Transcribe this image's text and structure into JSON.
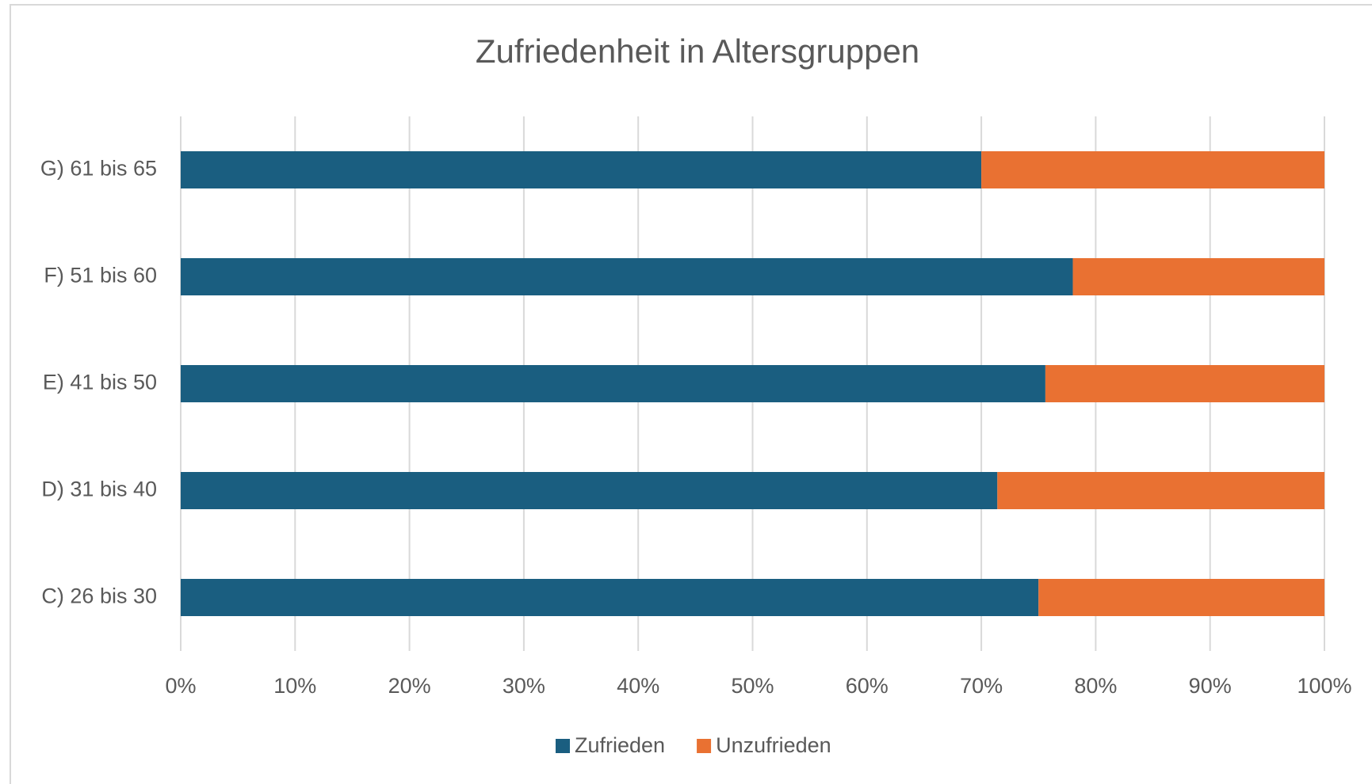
{
  "chart_data": {
    "type": "stacked-bar-horizontal",
    "title": "Zufriedenheit in Altersgruppen",
    "categories": [
      "C) 26 bis 30",
      "D) 31 bis 40",
      "E) 41 bis 50",
      "F) 51 bis 60",
      "G) 61 bis 65"
    ],
    "series": [
      {
        "name": "Zufrieden",
        "color": "#1a5e80",
        "values": [
          75,
          71.4,
          75.6,
          78,
          70
        ]
      },
      {
        "name": "Unzufrieden",
        "color": "#e97132",
        "values": [
          25,
          28.6,
          24.4,
          22,
          30
        ]
      }
    ],
    "xlim": [
      0,
      100
    ],
    "xticks": [
      {
        "value": 0,
        "label": "0%"
      },
      {
        "value": 10,
        "label": "10%"
      },
      {
        "value": 20,
        "label": "20%"
      },
      {
        "value": 30,
        "label": "30%"
      },
      {
        "value": 40,
        "label": "40%"
      },
      {
        "value": 50,
        "label": "50%"
      },
      {
        "value": 60,
        "label": "60%"
      },
      {
        "value": 70,
        "label": "70%"
      },
      {
        "value": 80,
        "label": "80%"
      },
      {
        "value": 90,
        "label": "90%"
      },
      {
        "value": 100,
        "label": "100%"
      }
    ],
    "grid": true,
    "legend": "bottom"
  }
}
